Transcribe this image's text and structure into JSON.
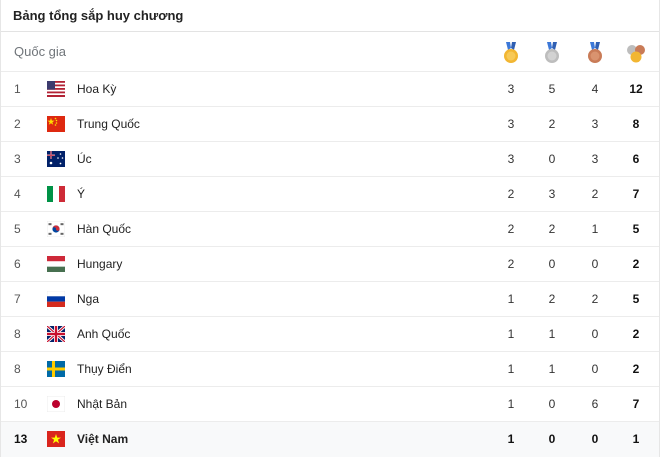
{
  "header": {
    "title": "Bảng tổng sắp huy chương"
  },
  "columns": {
    "country_label": "Quốc gia"
  },
  "rows": [
    {
      "rank": "1",
      "country": "Hoa Kỳ",
      "flag": "us-flag-icon",
      "gold": "3",
      "silver": "5",
      "bronze": "4",
      "total": "12"
    },
    {
      "rank": "2",
      "country": "Trung Quốc",
      "flag": "china-flag-icon",
      "gold": "3",
      "silver": "2",
      "bronze": "3",
      "total": "8"
    },
    {
      "rank": "3",
      "country": "Úc",
      "flag": "australia-flag-icon",
      "gold": "3",
      "silver": "0",
      "bronze": "3",
      "total": "6"
    },
    {
      "rank": "4",
      "country": "Ý",
      "flag": "italy-flag-icon",
      "gold": "2",
      "silver": "3",
      "bronze": "2",
      "total": "7"
    },
    {
      "rank": "5",
      "country": "Hàn Quốc",
      "flag": "south-korea-flag-icon",
      "gold": "2",
      "silver": "2",
      "bronze": "1",
      "total": "5"
    },
    {
      "rank": "6",
      "country": "Hungary",
      "flag": "hungary-flag-icon",
      "gold": "2",
      "silver": "0",
      "bronze": "0",
      "total": "2"
    },
    {
      "rank": "7",
      "country": "Nga",
      "flag": "russia-flag-icon",
      "gold": "1",
      "silver": "2",
      "bronze": "2",
      "total": "5"
    },
    {
      "rank": "8",
      "country": "Anh Quốc",
      "flag": "uk-flag-icon",
      "gold": "1",
      "silver": "1",
      "bronze": "0",
      "total": "2"
    },
    {
      "rank": "8",
      "country": "Thụy Điển",
      "flag": "sweden-flag-icon",
      "gold": "1",
      "silver": "1",
      "bronze": "0",
      "total": "2"
    },
    {
      "rank": "10",
      "country": "Nhật Bản",
      "flag": "japan-flag-icon",
      "gold": "1",
      "silver": "0",
      "bronze": "6",
      "total": "7"
    },
    {
      "rank": "13",
      "country": "Việt Nam",
      "flag": "vietnam-flag-icon",
      "gold": "1",
      "silver": "0",
      "bronze": "0",
      "total": "1"
    }
  ],
  "colors": {
    "gold": "#f2b632",
    "silver": "#bdbdbd",
    "bronze": "#c97b57",
    "highlight_row": "#f8f9fa"
  }
}
